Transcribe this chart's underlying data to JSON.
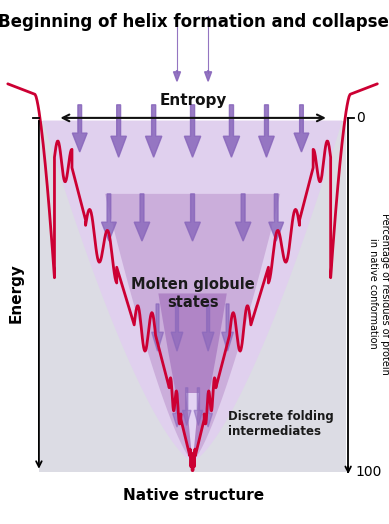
{
  "title": "Beginning of helix formation and collapse",
  "title_fontsize": 12,
  "bg_white": "#ffffff",
  "bg_gray": "#dcdce4",
  "funnel_light": "#e0d0ee",
  "funnel_mid": "#c8a8d8",
  "funnel_dark": "#a878c0",
  "curve_color": "#cc0033",
  "curve_lw": 2.0,
  "arrow_color": "#8866bb",
  "left_label": "Energy",
  "right_label": "Percentage of residues of protein\nin native conformation",
  "bottom_label": "Native structure",
  "entropy_label": "Entropy",
  "label0": "0",
  "label100": "100",
  "molten_label": "Molten globule\nstates",
  "discrete_label": "Discrete folding\nintermediates",
  "fig_width": 3.89,
  "fig_height": 5.24,
  "dpi": 100
}
